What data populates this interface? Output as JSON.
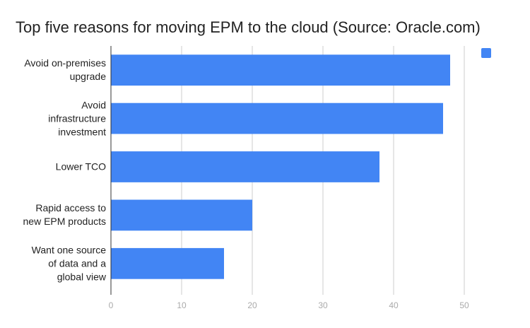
{
  "chart_data": {
    "type": "bar",
    "orientation": "horizontal",
    "title": "Top five reasons for moving EPM to the cloud (Source: Oracle.com)",
    "categories": [
      "Avoid on-premises upgrade",
      "Avoid infrastructure investment",
      "Lower TCO",
      "Rapid access to new EPM products",
      "Want one source of data and a global view"
    ],
    "values": [
      48,
      47,
      38,
      20,
      16
    ],
    "color": "#4285f4",
    "xlim": [
      0,
      50
    ],
    "xticks": [
      0,
      10,
      20,
      30,
      40,
      50
    ],
    "grid": true,
    "legend": "top-right"
  }
}
